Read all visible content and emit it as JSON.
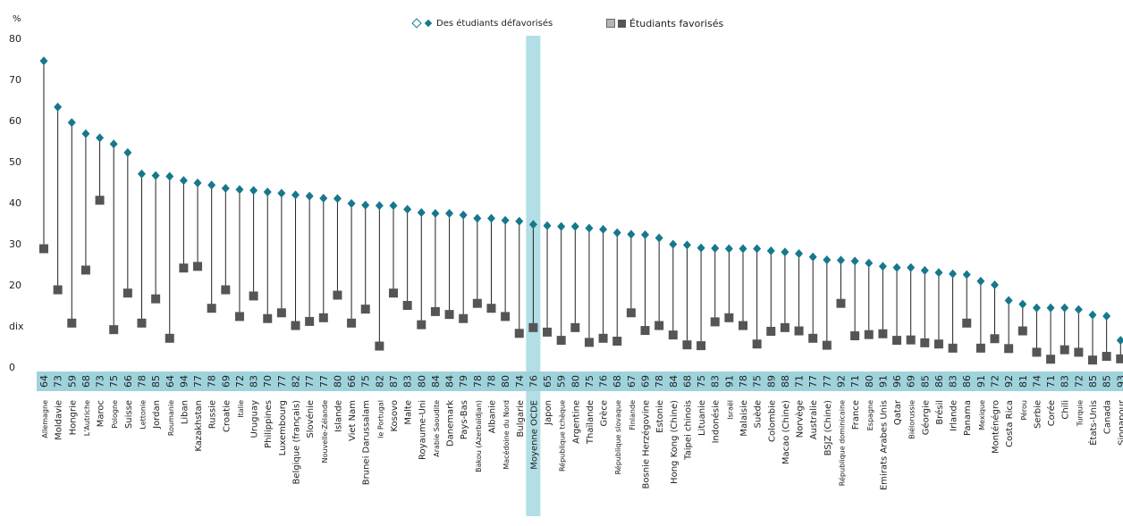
{
  "legend": {
    "disadvantaged": "Des étudiants défavorisés",
    "advantaged": "Étudiants favorisés"
  },
  "colors": {
    "disadvantaged": "#17788c",
    "advantaged": "#555555",
    "band": "#7ec8d3",
    "bar": "#9fd3dc"
  },
  "chart_data": {
    "type": "scatter",
    "ylabel": "%",
    "ylim": [
      0,
      80
    ],
    "yticks": [
      0,
      10,
      20,
      30,
      40,
      50,
      60,
      70,
      80
    ],
    "ytick_labels": [
      "0",
      "dix",
      "20",
      "30",
      "40",
      "50",
      "60",
      "70",
      "80"
    ],
    "grid": false,
    "highlight": "Moyenne OCDE",
    "categories": [
      "Allemagne",
      "Moldavie",
      "Hongrie",
      "L'Autriche",
      "Maroc",
      "Pologne",
      "Suisse",
      "Lettonie",
      "Jordan",
      "Roumanie",
      "Liban",
      "Kazakhstan",
      "Russie",
      "Croatie",
      "Italie",
      "Uruguay",
      "Philippines",
      "Luxembourg",
      "Belgique (français)",
      "Slovénie",
      "Nouvelle-Zélande",
      "Islande",
      "Viet Nam",
      "Brunei Darussalam",
      "le Portugal",
      "Kosovo",
      "Malte",
      "Royaume-Uni",
      "Arabie Saoudite",
      "Danemark",
      "Pays-Bas",
      "Bakou (Azerbaïdjan)",
      "Albanie",
      "Macédoine du Nord",
      "Bulgarie",
      "Moyenne OCDE",
      "Japon",
      "République tchèque",
      "Argentine",
      "Thaïlande",
      "Grèce",
      "République slovaque",
      "Finlande",
      "Bosnie Herzégovine",
      "Estonie",
      "Hong Kong (Chine)",
      "Taipei chinois",
      "Lituanie",
      "Indonésie",
      "Israël",
      "Malaisie",
      "Suède",
      "Colombie",
      "Macao (Chine)",
      "Norvège",
      "Australie",
      "BSJZ (Chine)",
      "République dominicaine",
      "France",
      "Espagne",
      "Emirats Arabes Unis",
      "Qatar",
      "Biélorussie",
      "Géorgie",
      "Brésil",
      "Irlande",
      "Panama",
      "Mexique",
      "Monténégro",
      "Costa Rica",
      "Pérou",
      "Serbie",
      "Corée",
      "Chili",
      "Turquie",
      "États-Unis",
      "Canada",
      "Singapour"
    ],
    "codes": [
      "64",
      "73",
      "59",
      "68",
      "73",
      "75",
      "66",
      "78",
      "85",
      "64",
      "94",
      "77",
      "78",
      "69",
      "72",
      "83",
      "70",
      "77",
      "82",
      "77",
      "77",
      "80",
      "66",
      "75",
      "82",
      "87",
      "83",
      "80",
      "84",
      "84",
      "79",
      "78",
      "78",
      "80",
      "74",
      "76",
      "65",
      "59",
      "80",
      "75",
      "76",
      "68",
      "67",
      "69",
      "78",
      "84",
      "68",
      "75",
      "83",
      "91",
      "78",
      "75",
      "89",
      "88",
      "71",
      "77",
      "77",
      "92",
      "71",
      "80",
      "91",
      "96",
      "69",
      "85",
      "86",
      "83",
      "86",
      "91",
      "72",
      "92",
      "81",
      "74",
      "71",
      "83",
      "72",
      "85",
      "85",
      "93"
    ],
    "series": [
      {
        "name": "Des étudiants défavorisés",
        "values": [
          74.5,
          63.3,
          59.5,
          56.8,
          55.8,
          54.3,
          52.2,
          47.0,
          46.6,
          46.4,
          45.4,
          44.8,
          44.3,
          43.5,
          43.2,
          43.0,
          42.6,
          42.3,
          41.9,
          41.6,
          41.1,
          41.0,
          39.8,
          39.4,
          39.3,
          39.3,
          38.4,
          37.6,
          37.4,
          37.4,
          37.0,
          36.2,
          36.2,
          35.7,
          35.5,
          34.7,
          34.4,
          34.2,
          34.2,
          33.8,
          33.5,
          32.7,
          32.3,
          32.2,
          31.4,
          29.9,
          29.7,
          29.0,
          28.9,
          28.8,
          28.8,
          28.8,
          28.3,
          28.0,
          27.6,
          26.8,
          26.1,
          26.0,
          25.8,
          25.3,
          24.5,
          24.2,
          24.2,
          23.5,
          23.0,
          22.7,
          22.5,
          20.9,
          20.0,
          16.2,
          15.3,
          14.4,
          14.4,
          14.4,
          14.0,
          12.7,
          12.4,
          6.5
        ]
      },
      {
        "name": "Étudiants favorisés",
        "values": [
          28.8,
          18.8,
          10.7,
          23.6,
          40.6,
          9.1,
          18.0,
          10.7,
          16.6,
          7.0,
          24.1,
          24.5,
          14.3,
          18.8,
          12.3,
          17.3,
          11.8,
          13.2,
          10.1,
          11.1,
          12.0,
          17.5,
          10.7,
          14.1,
          5.1,
          18.0,
          15.0,
          10.3,
          13.5,
          12.8,
          11.8,
          15.5,
          14.3,
          12.3,
          8.2,
          9.6,
          8.5,
          6.5,
          9.6,
          6.0,
          7.0,
          6.3,
          13.2,
          8.9,
          10.1,
          7.8,
          5.4,
          5.2,
          11.0,
          12.0,
          10.1,
          5.6,
          8.7,
          9.6,
          8.8,
          7.0,
          5.3,
          15.5,
          7.6,
          7.9,
          8.1,
          6.5,
          6.6,
          5.9,
          5.6,
          4.6,
          10.7,
          4.6,
          6.9,
          4.5,
          8.8,
          3.6,
          1.9,
          4.2,
          3.6,
          1.7,
          2.6,
          2.0
        ]
      }
    ]
  }
}
